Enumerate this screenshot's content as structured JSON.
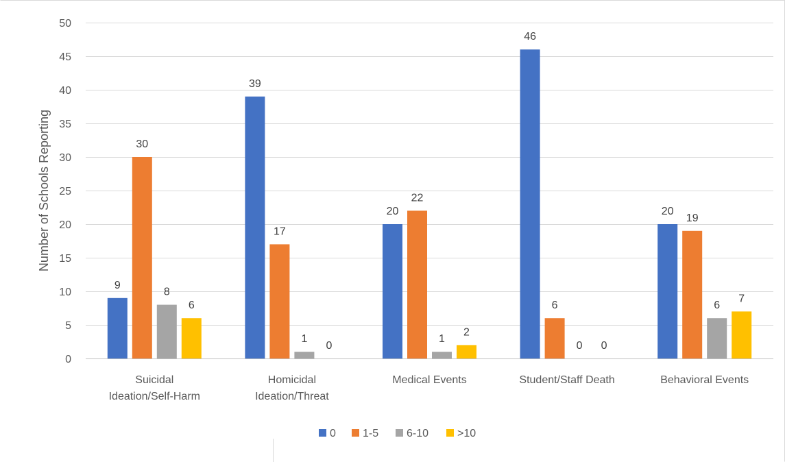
{
  "chart_data": {
    "type": "bar",
    "title": "",
    "xlabel": "",
    "ylabel": "Number of Schools Reporting",
    "ylim": [
      0,
      50
    ],
    "yticks": [
      0,
      5,
      10,
      15,
      20,
      25,
      30,
      35,
      40,
      45,
      50
    ],
    "grid": true,
    "legend_position": "bottom",
    "categories": [
      [
        "Suicidal",
        "Ideation/Self-Harm"
      ],
      [
        "Homicidal",
        "Ideation/Threat"
      ],
      [
        "Medical Events"
      ],
      [
        "Student/Staff Death"
      ],
      [
        "Behavioral Events"
      ]
    ],
    "series": [
      {
        "name": "0",
        "color": "#4472c4",
        "values": [
          9,
          39,
          20,
          46,
          20
        ]
      },
      {
        "name": "1-5",
        "color": "#ed7d31",
        "values": [
          30,
          17,
          22,
          6,
          19
        ]
      },
      {
        "name": "6-10",
        "color": "#a5a5a5",
        "values": [
          8,
          1,
          1,
          0,
          6
        ]
      },
      {
        "name": ">10",
        "color": "#ffc000",
        "values": [
          6,
          0,
          2,
          0,
          7
        ]
      }
    ]
  }
}
